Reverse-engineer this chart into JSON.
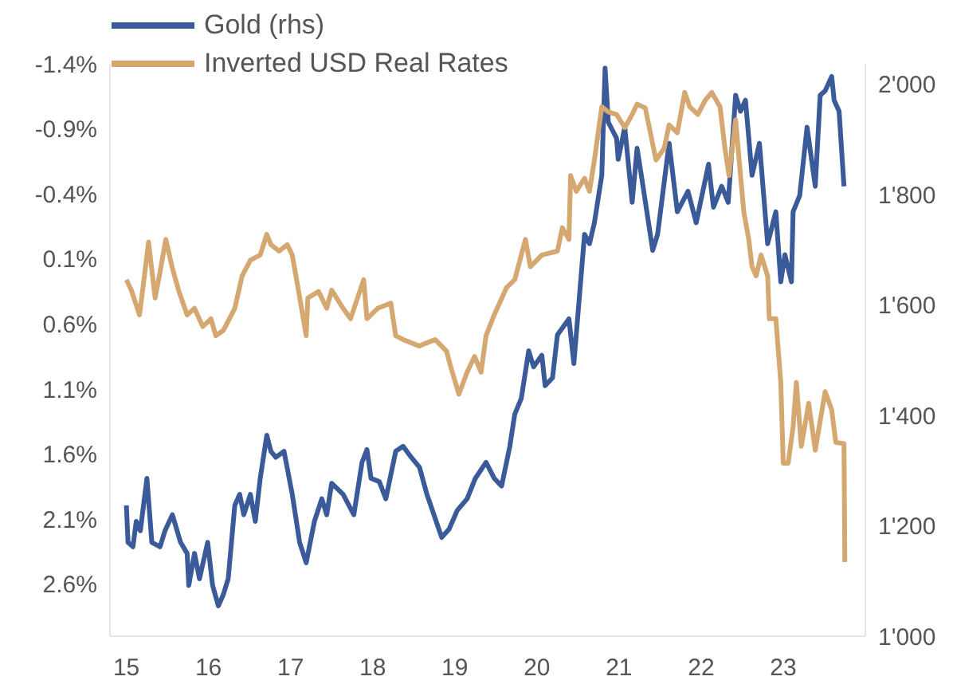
{
  "chart_data": {
    "type": "line",
    "legend": "top left",
    "grid": false,
    "xlim": [
      2014.8,
      2024.0
    ],
    "xticks": [
      {
        "value": 2015,
        "label": "15"
      },
      {
        "value": 2016,
        "label": "16"
      },
      {
        "value": 2017,
        "label": "17"
      },
      {
        "value": 2018,
        "label": "18"
      },
      {
        "value": 2019,
        "label": "19"
      },
      {
        "value": 2020,
        "label": "20"
      },
      {
        "value": 2021,
        "label": "21"
      },
      {
        "value": 2022,
        "label": "22"
      },
      {
        "value": 2023,
        "label": "23"
      }
    ],
    "ylim": [
      3.0,
      -1.4
    ],
    "yticks": [
      {
        "value": -1.4,
        "label": "-1.4%"
      },
      {
        "value": -0.9,
        "label": "-0.9%"
      },
      {
        "value": -0.4,
        "label": "-0.4%"
      },
      {
        "value": 0.1,
        "label": "0.1%"
      },
      {
        "value": 0.6,
        "label": "0.6%"
      },
      {
        "value": 1.1,
        "label": "1.1%"
      },
      {
        "value": 1.6,
        "label": "1.6%"
      },
      {
        "value": 2.1,
        "label": "2.1%"
      },
      {
        "value": 2.6,
        "label": "2.6%"
      }
    ],
    "y2lim": [
      1000,
      2037
    ],
    "y2ticks": [
      {
        "value": 1000,
        "label": "1'000"
      },
      {
        "value": 1200,
        "label": "1'200"
      },
      {
        "value": 1400,
        "label": "1'400"
      },
      {
        "value": 1600,
        "label": "1'600"
      },
      {
        "value": 1800,
        "label": "1'800"
      },
      {
        "value": 2000,
        "label": "2'000"
      }
    ],
    "series": [
      {
        "name": "Gold (rhs)",
        "color": "#3a5a9a",
        "axis": "y2",
        "x": [
          2015.0,
          2015.02,
          2015.08,
          2015.12,
          2015.17,
          2015.25,
          2015.31,
          2015.41,
          2015.47,
          2015.56,
          2015.66,
          2015.74,
          2015.76,
          2015.83,
          2015.89,
          2015.99,
          2016.05,
          2016.12,
          2016.18,
          2016.24,
          2016.32,
          2016.38,
          2016.43,
          2016.51,
          2016.57,
          2016.63,
          2016.71,
          2016.76,
          2016.82,
          2016.92,
          2017.02,
          2017.11,
          2017.19,
          2017.29,
          2017.38,
          2017.44,
          2017.5,
          2017.64,
          2017.77,
          2017.87,
          2017.93,
          2017.98,
          2018.08,
          2018.16,
          2018.28,
          2018.37,
          2018.47,
          2018.57,
          2018.66,
          2018.84,
          2018.93,
          2019.03,
          2019.15,
          2019.25,
          2019.38,
          2019.48,
          2019.57,
          2019.67,
          2019.73,
          2019.81,
          2019.9,
          2019.96,
          2020.06,
          2020.1,
          2020.19,
          2020.25,
          2020.39,
          2020.45,
          2020.58,
          2020.64,
          2020.7,
          2020.79,
          2020.83,
          2020.87,
          2020.97,
          2020.99,
          2021.07,
          2021.16,
          2021.22,
          2021.28,
          2021.41,
          2021.47,
          2021.61,
          2021.71,
          2021.84,
          2021.94,
          2022.09,
          2022.15,
          2022.25,
          2022.33,
          2022.42,
          2022.48,
          2022.54,
          2022.62,
          2022.71,
          2022.81,
          2022.91,
          2022.97,
          2023.02,
          2023.1,
          2023.12,
          2023.2,
          2023.29,
          2023.39,
          2023.45,
          2023.51,
          2023.59,
          2023.62,
          2023.68,
          2023.74
        ],
        "values": [
          1237,
          1170,
          1162,
          1208,
          1191,
          1286,
          1170,
          1162,
          1191,
          1220,
          1170,
          1150,
          1092,
          1150,
          1104,
          1170,
          1092,
          1055,
          1075,
          1104,
          1237,
          1257,
          1220,
          1257,
          1208,
          1286,
          1364,
          1335,
          1324,
          1335,
          1257,
          1170,
          1133,
          1208,
          1249,
          1220,
          1277,
          1257,
          1220,
          1315,
          1338,
          1286,
          1280,
          1249,
          1335,
          1344,
          1324,
          1306,
          1257,
          1179,
          1194,
          1228,
          1249,
          1286,
          1315,
          1286,
          1272,
          1344,
          1402,
          1431,
          1517,
          1488,
          1509,
          1454,
          1468,
          1546,
          1575,
          1494,
          1728,
          1711,
          1749,
          1835,
          2029,
          1931,
          1902,
          1864,
          1922,
          1786,
          1884,
          1827,
          1699,
          1728,
          1893,
          1769,
          1806,
          1749,
          1855,
          1777,
          1815,
          1786,
          1980,
          1951,
          1971,
          1835,
          1893,
          1711,
          1769,
          1642,
          1691,
          1642,
          1769,
          1798,
          1922,
          1815,
          1980,
          1988,
          2014,
          1971,
          1951,
          1815
        ]
      },
      {
        "name": "Inverted USD Real Rates",
        "color": "#d4a870",
        "x": [
          2015.0,
          2015.06,
          2015.16,
          2015.21,
          2015.27,
          2015.35,
          2015.41,
          2015.48,
          2015.56,
          2015.64,
          2015.74,
          2015.83,
          2015.93,
          2016.03,
          2016.09,
          2016.18,
          2016.32,
          2016.41,
          2016.51,
          2016.63,
          2016.71,
          2016.76,
          2016.86,
          2016.96,
          2017.02,
          2017.09,
          2017.19,
          2017.21,
          2017.34,
          2017.44,
          2017.5,
          2017.64,
          2017.73,
          2017.89,
          2017.93,
          2018.06,
          2018.22,
          2018.28,
          2018.37,
          2018.57,
          2018.64,
          2018.76,
          2018.9,
          2018.95,
          2019.05,
          2019.15,
          2019.24,
          2019.32,
          2019.38,
          2019.48,
          2019.63,
          2019.73,
          2019.86,
          2019.92,
          2020.06,
          2020.25,
          2020.31,
          2020.39,
          2020.41,
          2020.48,
          2020.58,
          2020.64,
          2020.7,
          2020.79,
          2020.87,
          2020.97,
          2021.07,
          2021.16,
          2021.22,
          2021.32,
          2021.45,
          2021.55,
          2021.61,
          2021.71,
          2021.8,
          2021.86,
          2021.96,
          2022.05,
          2022.13,
          2022.23,
          2022.29,
          2022.34,
          2022.42,
          2022.48,
          2022.52,
          2022.58,
          2022.62,
          2022.67,
          2022.73,
          2022.81,
          2022.83,
          2022.91,
          2022.97,
          2023.0,
          2023.06,
          2023.12,
          2023.16,
          2023.22,
          2023.31,
          2023.39,
          2023.51,
          2023.59,
          2023.64,
          2023.74,
          2023.75
        ],
        "values": [
          0.26,
          0.34,
          0.53,
          0.28,
          -0.03,
          0.4,
          0.2,
          -0.05,
          0.17,
          0.35,
          0.53,
          0.48,
          0.62,
          0.56,
          0.69,
          0.65,
          0.48,
          0.23,
          0.11,
          0.07,
          -0.09,
          -0.01,
          0.04,
          -0.01,
          0.07,
          0.32,
          0.69,
          0.4,
          0.35,
          0.48,
          0.34,
          0.48,
          0.56,
          0.26,
          0.56,
          0.48,
          0.44,
          0.69,
          0.72,
          0.77,
          0.75,
          0.72,
          0.81,
          0.93,
          1.14,
          0.97,
          0.85,
          0.97,
          0.69,
          0.53,
          0.32,
          0.26,
          -0.05,
          0.16,
          0.07,
          0.04,
          -0.14,
          -0.05,
          -0.54,
          -0.42,
          -0.52,
          -0.42,
          -0.66,
          -1.07,
          -1.03,
          -1.01,
          -0.91,
          -1.01,
          -1.09,
          -1.06,
          -0.66,
          -0.75,
          -0.93,
          -0.87,
          -1.18,
          -1.07,
          -1.01,
          -1.12,
          -1.18,
          -1.07,
          -0.75,
          -0.54,
          -0.97,
          -0.54,
          -0.26,
          -0.05,
          0.16,
          0.23,
          0.07,
          0.23,
          0.56,
          0.56,
          1.05,
          1.67,
          1.67,
          1.39,
          1.05,
          1.54,
          1.21,
          1.57,
          1.12,
          1.26,
          1.51,
          1.52,
          2.43
        ]
      }
    ]
  }
}
